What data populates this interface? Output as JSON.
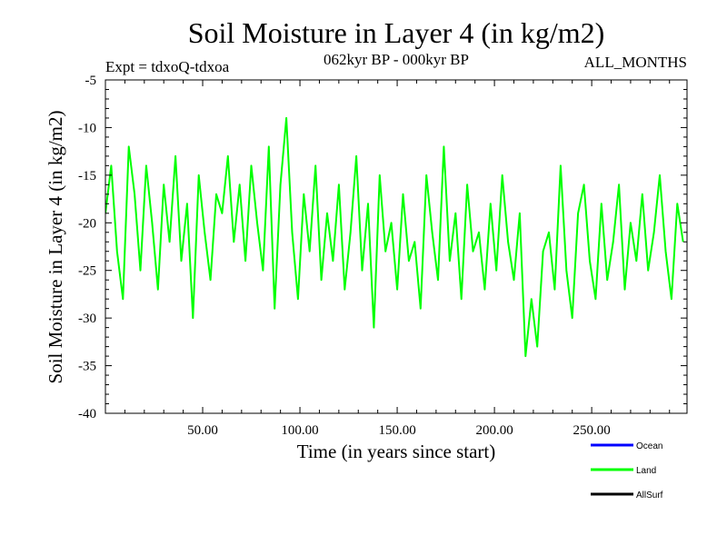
{
  "chart_data": {
    "type": "line",
    "title": "Soil Moisture in Layer 4 (in kg/m2)",
    "subtitle_left": "Expt = tdxoQ-tdxoa",
    "subtitle_center": "062kyr BP - 000kyr BP",
    "subtitle_right": "ALL_MONTHS",
    "xlabel": "Time (in years since start)",
    "ylabel": "Soil Moisture in Layer 4 (in kg/m2)",
    "xlim": [
      0,
      299
    ],
    "ylim": [
      -40,
      -5
    ],
    "x_ticks": [
      50,
      100,
      150,
      200,
      250
    ],
    "x_tick_labels": [
      "50.00",
      "100.00",
      "150.00",
      "200.00",
      "250.00"
    ],
    "y_ticks": [
      -5,
      -10,
      -15,
      -20,
      -25,
      -30,
      -35,
      -40
    ],
    "y_tick_labels": [
      "-5",
      "-10",
      "-15",
      "-20",
      "-25",
      "-30",
      "-35",
      "-40"
    ],
    "grid": false,
    "legend_position": "bottom-right",
    "legend": [
      {
        "name": "Ocean",
        "label": "Ocean",
        "color": "#0000ff"
      },
      {
        "name": "Land",
        "label": "Land",
        "color": "#00ff00"
      },
      {
        "name": "AllSurf",
        "label": "AllSurf",
        "color": "#000000"
      }
    ],
    "series": [
      {
        "name": "Land",
        "color": "#00ff00",
        "x": [
          0,
          3,
          6,
          9,
          12,
          15,
          18,
          21,
          24,
          27,
          30,
          33,
          36,
          39,
          42,
          45,
          48,
          51,
          54,
          57,
          60,
          63,
          66,
          69,
          72,
          75,
          78,
          81,
          84,
          87,
          90,
          93,
          96,
          99,
          102,
          105,
          108,
          111,
          114,
          117,
          120,
          123,
          126,
          129,
          132,
          135,
          138,
          141,
          144,
          147,
          150,
          153,
          156,
          159,
          162,
          165,
          168,
          171,
          174,
          177,
          180,
          183,
          186,
          189,
          192,
          195,
          198,
          201,
          204,
          207,
          210,
          213,
          216,
          219,
          222,
          225,
          228,
          231,
          234,
          237,
          240,
          243,
          246,
          249,
          252,
          255,
          258,
          261,
          264,
          267,
          270,
          273,
          276,
          279,
          282,
          285,
          288,
          291,
          294,
          297
        ],
        "y": [
          -19,
          -14,
          -23,
          -28,
          -12,
          -17,
          -25,
          -14,
          -20,
          -27,
          -16,
          -22,
          -13,
          -24,
          -18,
          -30,
          -15,
          -21,
          -26,
          -17,
          -19,
          -13,
          -22,
          -16,
          -24,
          -14,
          -20,
          -25,
          -12,
          -29,
          -16,
          -9,
          -21,
          -28,
          -17,
          -23,
          -14,
          -26,
          -19,
          -24,
          -16,
          -27,
          -21,
          -13,
          -25,
          -18,
          -31,
          -15,
          -23,
          -20,
          -27,
          -17,
          -24,
          -22,
          -29,
          -15,
          -21,
          -26,
          -12,
          -24,
          -19,
          -28,
          -16,
          -23,
          -21,
          -27,
          -18,
          -25,
          -15,
          -22,
          -26,
          -19,
          -34,
          -28,
          -33,
          -23,
          -21,
          -27,
          -14,
          -25,
          -30,
          -19,
          -16,
          -24,
          -28,
          -18,
          -26,
          -22,
          -16,
          -27,
          -20,
          -24,
          -17,
          -25,
          -21,
          -15,
          -23,
          -28,
          -18,
          -22
        ]
      }
    ]
  }
}
